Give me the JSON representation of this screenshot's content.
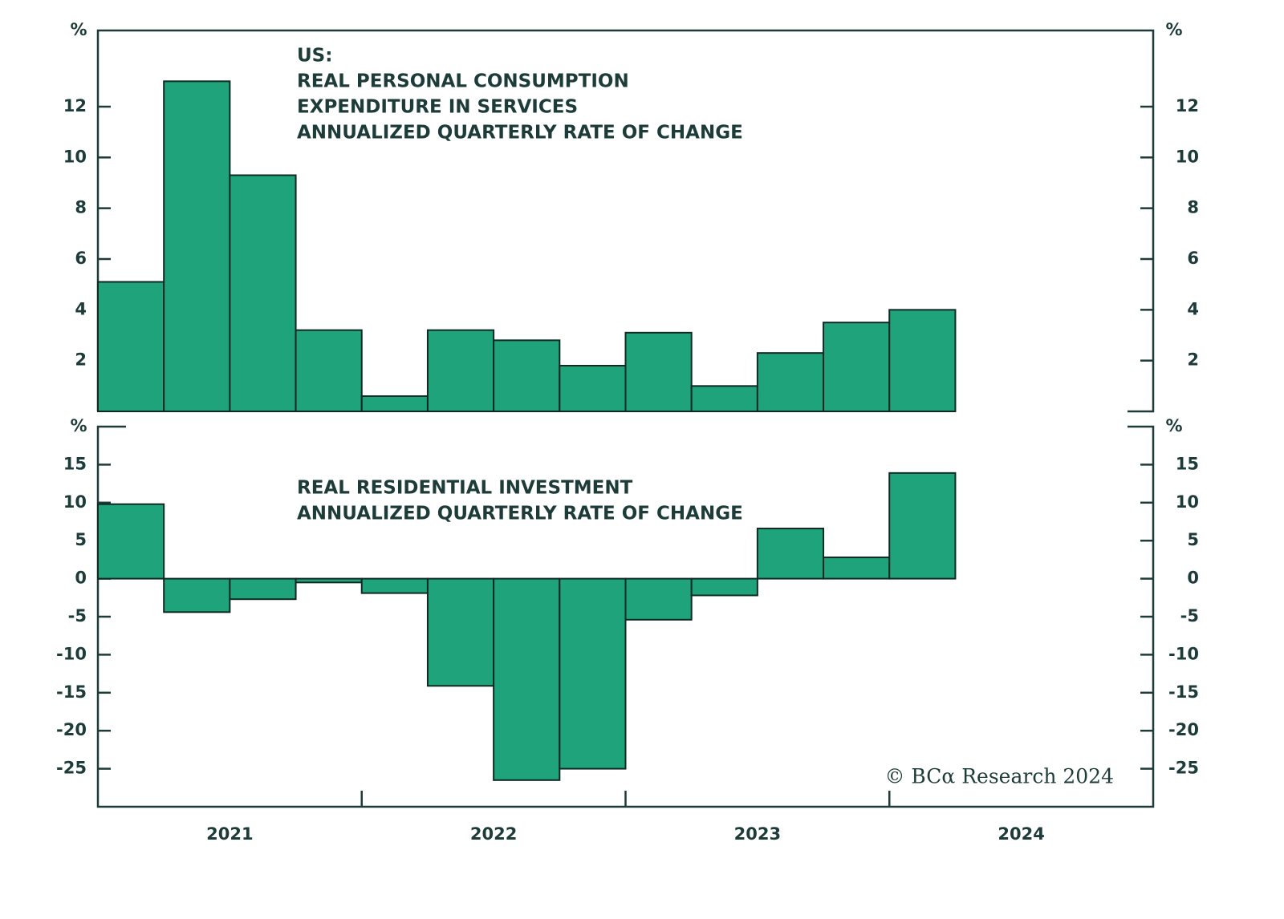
{
  "chart_data": [
    {
      "type": "bar",
      "title_lines": [
        "US:",
        "REAL PERSONAL CONSUMPTION",
        "EXPENDITURE IN SERVICES",
        "ANNUALIZED QUARTERLY RATE OF CHANGE"
      ],
      "unit": "%",
      "x": [
        2021,
        2021.25,
        2021.5,
        2021.75,
        2022,
        2022.25,
        2022.5,
        2022.75,
        2023,
        2023.25,
        2023.5,
        2023.75,
        2024
      ],
      "values": [
        5.1,
        13.0,
        9.3,
        3.2,
        0.6,
        3.2,
        2.8,
        1.8,
        3.1,
        1.0,
        2.3,
        3.5,
        4.0
      ],
      "xlim": [
        2021,
        2025
      ],
      "ylim": [
        0,
        15
      ],
      "yticks": [
        2,
        4,
        6,
        8,
        10,
        12
      ],
      "color": "#1ea37b"
    },
    {
      "type": "bar",
      "title_lines": [
        "REAL RESIDENTIAL INVESTMENT",
        "ANNUALIZED QUARTERLY RATE OF CHANGE"
      ],
      "unit": "%",
      "x": [
        2021,
        2021.25,
        2021.5,
        2021.75,
        2022,
        2022.25,
        2022.5,
        2022.75,
        2023,
        2023.25,
        2023.5,
        2023.75,
        2024
      ],
      "values": [
        9.8,
        -4.4,
        -2.7,
        -0.5,
        -1.9,
        -14.1,
        -26.5,
        -25.0,
        -5.4,
        -2.2,
        6.6,
        2.8,
        13.9
      ],
      "xlim": [
        2021,
        2025
      ],
      "ylim": [
        -30,
        20
      ],
      "yticks": [
        -25,
        -20,
        -15,
        -10,
        -5,
        0,
        5,
        10,
        15
      ],
      "xticks": [
        {
          "value": 2021.5,
          "label": "2021"
        },
        {
          "value": 2022.5,
          "label": "2022"
        },
        {
          "value": 2023.5,
          "label": "2023"
        },
        {
          "value": 2024.5,
          "label": "2024"
        }
      ],
      "color": "#1ea37b"
    }
  ],
  "source": "© BCα Research 2024"
}
